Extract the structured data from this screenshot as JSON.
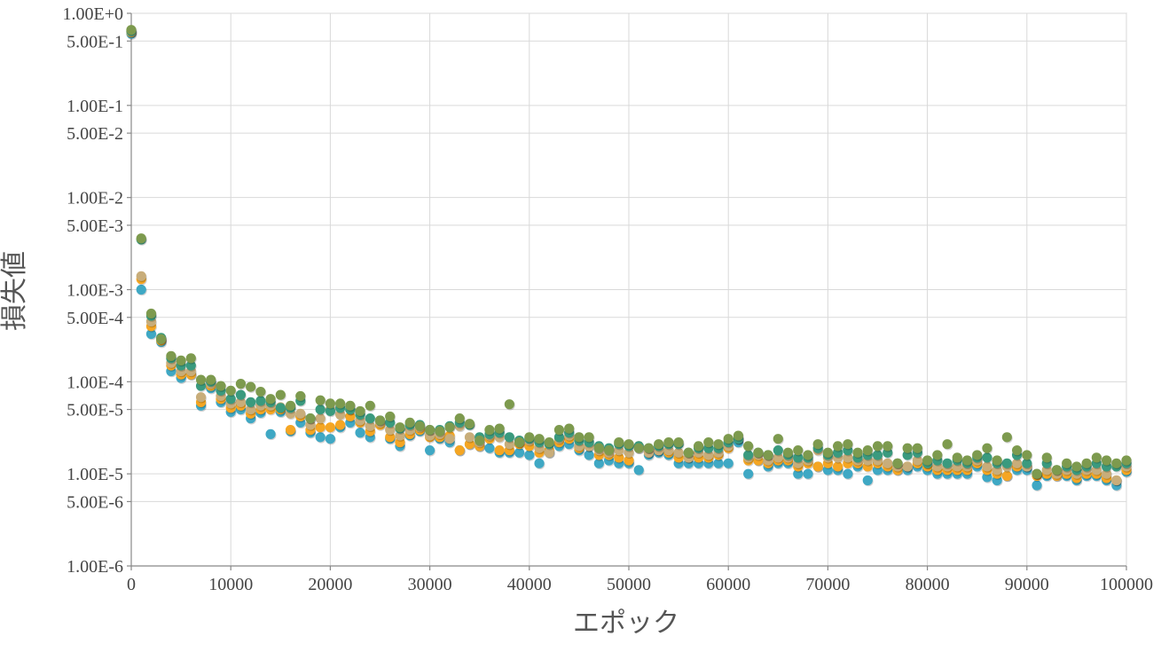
{
  "chart_data": {
    "type": "scatter",
    "xlabel": "エポック",
    "ylabel": "損失値",
    "xlim": [
      0,
      100000
    ],
    "ylim": [
      1e-06,
      1
    ],
    "yscale": "log",
    "grid": true,
    "x_ticks": [
      "0",
      "10000",
      "20000",
      "30000",
      "40000",
      "50000",
      "60000",
      "70000",
      "80000",
      "90000",
      "100000"
    ],
    "y_ticks": [
      {
        "label": "1.00E+0",
        "value": 1
      },
      {
        "label": "5.00E-1",
        "value": 0.5
      },
      {
        "label": "1.00E-1",
        "value": 0.1
      },
      {
        "label": "5.00E-2",
        "value": 0.05
      },
      {
        "label": "1.00E-2",
        "value": 0.01
      },
      {
        "label": "5.00E-3",
        "value": 0.005
      },
      {
        "label": "1.00E-3",
        "value": 0.001
      },
      {
        "label": "5.00E-4",
        "value": 0.0005
      },
      {
        "label": "1.00E-4",
        "value": 0.0001
      },
      {
        "label": "5.00E-5",
        "value": 5e-05
      },
      {
        "label": "1.00E-5",
        "value": 1e-05
      },
      {
        "label": "5.00E-6",
        "value": 5e-06
      },
      {
        "label": "1.00E-6",
        "value": 1e-06
      }
    ],
    "series": [
      {
        "color": "#3fa8c4",
        "x": [
          0,
          1000,
          2000,
          3000,
          4000,
          5000,
          6000,
          7000,
          8000,
          9000,
          10000,
          11000,
          12000,
          13000,
          14000,
          15000,
          16000,
          17000,
          18000,
          19000,
          20000,
          21000,
          22000,
          23000,
          24000,
          25000,
          26000,
          27000,
          28000,
          29000,
          30000,
          31000,
          32000,
          33000,
          34000,
          35000,
          36000,
          37000,
          38000,
          39000,
          40000,
          41000,
          42000,
          43000,
          44000,
          45000,
          46000,
          47000,
          48000,
          49000,
          50000,
          51000,
          52000,
          53000,
          54000,
          55000,
          56000,
          57000,
          58000,
          59000,
          60000,
          61000,
          62000,
          63000,
          64000,
          65000,
          66000,
          67000,
          68000,
          69000,
          70000,
          71000,
          72000,
          73000,
          74000,
          75000,
          76000,
          77000,
          78000,
          79000,
          80000,
          81000,
          82000,
          83000,
          84000,
          85000,
          86000,
          87000,
          88000,
          89000,
          90000,
          91000,
          92000,
          93000,
          94000,
          95000,
          96000,
          97000,
          98000,
          99000,
          100000
        ],
        "y": [
          0.6,
          0.001,
          0.00033,
          0.00027,
          0.00013,
          0.00011,
          0.00012,
          5.5e-05,
          8.5e-05,
          6e-05,
          4.7e-05,
          5e-05,
          4e-05,
          4.6e-05,
          2.7e-05,
          4.7e-05,
          2.9e-05,
          3.6e-05,
          2.8e-05,
          2.5e-05,
          2.4e-05,
          3.2e-05,
          3.6e-05,
          2.8e-05,
          2.5e-05,
          3.5e-05,
          2.4e-05,
          2e-05,
          2.6e-05,
          2.9e-05,
          1.8e-05,
          2.4e-05,
          2.2e-05,
          1.8e-05,
          2.1e-05,
          2e-05,
          1.9e-05,
          1.7e-05,
          1.7e-05,
          1.7e-05,
          1.6e-05,
          1.3e-05,
          1.7e-05,
          2e-05,
          2.1e-05,
          1.8e-05,
          1.6e-05,
          1.3e-05,
          1.4e-05,
          1.3e-05,
          1.3e-05,
          1.1e-05,
          1.6e-05,
          1.7e-05,
          1.6e-05,
          1.3e-05,
          1.3e-05,
          1.3e-05,
          1.3e-05,
          1.3e-05,
          1.3e-05,
          2.2e-05,
          1e-05,
          1.4e-05,
          1.2e-05,
          1.3e-05,
          1.3e-05,
          1e-05,
          1e-05,
          1.2e-05,
          1.1e-05,
          1.1e-05,
          1e-05,
          1.2e-05,
          8.5e-06,
          1.1e-05,
          1.1e-05,
          1.1e-05,
          1.1e-05,
          1.2e-05,
          1.1e-05,
          1e-05,
          1e-05,
          1e-05,
          1e-05,
          1.2e-05,
          9.2e-06,
          8.5e-06,
          9.5e-06,
          1.1e-05,
          1.1e-05,
          7.5e-06,
          9.5e-06,
          9.5e-06,
          9.5e-06,
          8.5e-06,
          9.5e-06,
          9.5e-06,
          8.5e-06,
          7.5e-06,
          1.05e-05
        ]
      },
      {
        "color": "#f5a623",
        "x": [
          0,
          1000,
          2000,
          3000,
          4000,
          5000,
          6000,
          7000,
          8000,
          9000,
          10000,
          11000,
          12000,
          13000,
          14000,
          15000,
          16000,
          17000,
          18000,
          19000,
          20000,
          21000,
          22000,
          23000,
          24000,
          25000,
          26000,
          27000,
          28000,
          29000,
          30000,
          31000,
          32000,
          33000,
          34000,
          35000,
          36000,
          37000,
          38000,
          39000,
          40000,
          41000,
          42000,
          43000,
          44000,
          45000,
          46000,
          47000,
          48000,
          49000,
          50000,
          51000,
          52000,
          53000,
          54000,
          55000,
          56000,
          57000,
          58000,
          59000,
          60000,
          61000,
          62000,
          63000,
          64000,
          65000,
          66000,
          67000,
          68000,
          69000,
          70000,
          71000,
          72000,
          73000,
          74000,
          75000,
          76000,
          77000,
          78000,
          79000,
          80000,
          81000,
          82000,
          83000,
          84000,
          85000,
          86000,
          87000,
          88000,
          89000,
          90000,
          91000,
          92000,
          93000,
          94000,
          95000,
          96000,
          97000,
          98000,
          99000,
          100000
        ],
        "y": [
          0.62,
          0.0013,
          0.0004,
          0.00028,
          0.00015,
          0.00012,
          0.00012,
          6e-05,
          9e-05,
          6.5e-05,
          5.2e-05,
          5.5e-05,
          4.5e-05,
          5e-05,
          5e-05,
          5e-05,
          3e-05,
          4.2e-05,
          3e-05,
          3.2e-05,
          3.2e-05,
          3.4e-05,
          4.2e-05,
          3.6e-05,
          2.9e-05,
          3.4e-05,
          2.5e-05,
          2.2e-05,
          2.7e-05,
          3e-05,
          2.5e-05,
          2.5e-05,
          2.6e-05,
          1.8e-05,
          2.1e-05,
          2e-05,
          2.4e-05,
          1.8e-05,
          1.8e-05,
          2.1e-05,
          2e-05,
          1.7e-05,
          1.8e-05,
          2.2e-05,
          2.4e-05,
          1.9e-05,
          2e-05,
          1.6e-05,
          1.6e-05,
          1.5e-05,
          1.4e-05,
          2e-05,
          1.7e-05,
          1.8e-05,
          1.7e-05,
          1.5e-05,
          1.5e-05,
          1.5e-05,
          1.5e-05,
          1.6e-05,
          1.9e-05,
          2.4e-05,
          1.4e-05,
          1.4e-05,
          1.3e-05,
          1.4e-05,
          1.4e-05,
          1.2e-05,
          1.3e-05,
          1.2e-05,
          1.3e-05,
          1.2e-05,
          1.3e-05,
          1.3e-05,
          1.2e-05,
          1.3e-05,
          1.2e-05,
          1.1e-05,
          1.2e-05,
          1.3e-05,
          1.2e-05,
          1.1e-05,
          1.1e-05,
          1.1e-05,
          1.1e-05,
          1.3e-05,
          1.1e-05,
          1e-05,
          9.5e-06,
          1.2e-05,
          1.2e-05,
          9.5e-06,
          1e-05,
          9.5e-06,
          1e-05,
          9e-06,
          1e-05,
          1e-05,
          9e-06,
          8.5e-06,
          1.1e-05
        ]
      },
      {
        "color": "#c8ad7a",
        "x": [
          0,
          1000,
          2000,
          3000,
          4000,
          5000,
          6000,
          7000,
          8000,
          9000,
          10000,
          11000,
          12000,
          13000,
          14000,
          15000,
          16000,
          17000,
          18000,
          19000,
          20000,
          21000,
          22000,
          23000,
          24000,
          25000,
          26000,
          27000,
          28000,
          29000,
          30000,
          31000,
          32000,
          33000,
          34000,
          35000,
          36000,
          37000,
          38000,
          39000,
          40000,
          41000,
          42000,
          43000,
          44000,
          45000,
          46000,
          47000,
          48000,
          49000,
          50000,
          51000,
          52000,
          53000,
          54000,
          55000,
          56000,
          57000,
          58000,
          59000,
          60000,
          61000,
          62000,
          63000,
          64000,
          65000,
          66000,
          67000,
          68000,
          69000,
          70000,
          71000,
          72000,
          73000,
          74000,
          75000,
          76000,
          77000,
          78000,
          79000,
          80000,
          81000,
          82000,
          83000,
          84000,
          85000,
          86000,
          87000,
          88000,
          89000,
          90000,
          91000,
          92000,
          93000,
          94000,
          95000,
          96000,
          97000,
          98000,
          99000,
          100000
        ],
        "y": [
          0.63,
          0.0014,
          0.00045,
          0.00029,
          0.00016,
          0.00013,
          0.00013,
          6.8e-05,
          9.5e-05,
          7e-05,
          5.8e-05,
          6e-05,
          5e-05,
          5.5e-05,
          5.5e-05,
          5.3e-05,
          4.5e-05,
          4.5e-05,
          3.4e-05,
          4e-05,
          5e-05,
          4.4e-05,
          5e-05,
          3.8e-05,
          3.3e-05,
          3.6e-05,
          3e-05,
          2.6e-05,
          3e-05,
          3.2e-05,
          2.6e-05,
          2.7e-05,
          2.4e-05,
          3.3e-05,
          2.5e-05,
          2.2e-05,
          2.6e-05,
          2.5e-05,
          2.1e-05,
          2.2e-05,
          2.3e-05,
          1.9e-05,
          1.7e-05,
          2.4e-05,
          2.6e-05,
          2e-05,
          2e-05,
          1.8e-05,
          1.7e-05,
          1.8e-05,
          1.7e-05,
          1.9e-05,
          1.7e-05,
          1.8e-05,
          1.8e-05,
          1.7e-05,
          1.5e-05,
          1.7e-05,
          1.6e-05,
          1.7e-05,
          2e-05,
          2.4e-05,
          1.5e-05,
          1.6e-05,
          1.4e-05,
          1.5e-05,
          1.5e-05,
          1.3e-05,
          1.4e-05,
          1.8e-05,
          1.5e-05,
          1.5e-05,
          1.5e-05,
          1.4e-05,
          1.4e-05,
          1.4e-05,
          1.3e-05,
          1.2e-05,
          1.2e-05,
          1.4e-05,
          1.3e-05,
          1.2e-05,
          1.2e-05,
          1.2e-05,
          1.2e-05,
          1.4e-05,
          1.2e-05,
          1.1e-05,
          1.2e-05,
          1.3e-05,
          1.2e-05,
          1e-05,
          1.1e-05,
          1e-05,
          1.1e-05,
          1e-05,
          1.1e-05,
          1.1e-05,
          1e-05,
          8.5e-06,
          1.2e-05
        ]
      },
      {
        "color": "#3a9a7e",
        "x": [
          0,
          1000,
          2000,
          3000,
          4000,
          5000,
          6000,
          7000,
          8000,
          9000,
          10000,
          11000,
          12000,
          13000,
          14000,
          15000,
          16000,
          17000,
          18000,
          19000,
          20000,
          21000,
          22000,
          23000,
          24000,
          25000,
          26000,
          27000,
          28000,
          29000,
          30000,
          31000,
          32000,
          33000,
          34000,
          35000,
          36000,
          37000,
          38000,
          39000,
          40000,
          41000,
          42000,
          43000,
          44000,
          45000,
          46000,
          47000,
          48000,
          49000,
          50000,
          51000,
          52000,
          53000,
          54000,
          55000,
          56000,
          57000,
          58000,
          59000,
          60000,
          61000,
          62000,
          63000,
          64000,
          65000,
          66000,
          67000,
          68000,
          69000,
          70000,
          71000,
          72000,
          73000,
          74000,
          75000,
          76000,
          77000,
          78000,
          79000,
          80000,
          81000,
          82000,
          83000,
          84000,
          85000,
          86000,
          87000,
          88000,
          89000,
          90000,
          91000,
          92000,
          93000,
          94000,
          95000,
          96000,
          97000,
          98000,
          99000,
          100000
        ],
        "y": [
          0.64,
          0.0035,
          0.00052,
          0.0003,
          0.00018,
          0.00015,
          0.00015,
          9e-05,
          0.0001,
          8e-05,
          6.5e-05,
          7.2e-05,
          6e-05,
          6.2e-05,
          6e-05,
          5.2e-05,
          5.2e-05,
          6.2e-05,
          4e-05,
          5e-05,
          4.8e-05,
          5.2e-05,
          5e-05,
          4.4e-05,
          4e-05,
          3.8e-05,
          3.6e-05,
          3.1e-05,
          3.4e-05,
          3.4e-05,
          3e-05,
          3e-05,
          3.3e-05,
          3.6e-05,
          3.4e-05,
          2.5e-05,
          2.7e-05,
          2.8e-05,
          2.5e-05,
          2.3e-05,
          2.4e-05,
          2.2e-05,
          2.1e-05,
          2.5e-05,
          2.8e-05,
          2.3e-05,
          2.2e-05,
          2e-05,
          1.9e-05,
          2.1e-05,
          2e-05,
          2e-05,
          1.9e-05,
          2e-05,
          2.1e-05,
          2.1e-05,
          1.7e-05,
          1.9e-05,
          1.9e-05,
          1.9e-05,
          2.2e-05,
          2.4e-05,
          1.6e-05,
          1.7e-05,
          1.6e-05,
          1.8e-05,
          1.6e-05,
          1.5e-05,
          1.5e-05,
          1.9e-05,
          1.6e-05,
          1.7e-05,
          1.8e-05,
          1.5e-05,
          1.6e-05,
          1.6e-05,
          1.7e-05,
          1.3e-05,
          1.6e-05,
          1.7e-05,
          1.3e-05,
          1.4e-05,
          1.3e-05,
          1.4e-05,
          1.3e-05,
          1.5e-05,
          1.5e-05,
          1.3e-05,
          1.3e-05,
          1.6e-05,
          1.3e-05,
          1e-05,
          1.3e-05,
          1.1e-05,
          1.2e-05,
          1.1e-05,
          1.2e-05,
          1.3e-05,
          1.2e-05,
          1.2e-05,
          1.3e-05
        ]
      },
      {
        "color": "#7d9a4e",
        "x": [
          0,
          1000,
          2000,
          3000,
          4000,
          5000,
          6000,
          7000,
          8000,
          9000,
          10000,
          11000,
          12000,
          13000,
          14000,
          15000,
          16000,
          17000,
          18000,
          19000,
          20000,
          21000,
          22000,
          23000,
          24000,
          25000,
          26000,
          27000,
          28000,
          29000,
          30000,
          31000,
          32000,
          33000,
          34000,
          35000,
          36000,
          37000,
          38000,
          39000,
          40000,
          41000,
          42000,
          43000,
          44000,
          45000,
          46000,
          47000,
          48000,
          49000,
          50000,
          51000,
          52000,
          53000,
          54000,
          55000,
          56000,
          57000,
          58000,
          59000,
          60000,
          61000,
          62000,
          63000,
          64000,
          65000,
          66000,
          67000,
          68000,
          69000,
          70000,
          71000,
          72000,
          73000,
          74000,
          75000,
          76000,
          77000,
          78000,
          79000,
          80000,
          81000,
          82000,
          83000,
          84000,
          85000,
          86000,
          87000,
          88000,
          89000,
          90000,
          91000,
          92000,
          93000,
          94000,
          95000,
          96000,
          97000,
          98000,
          99000,
          100000
        ],
        "y": [
          0.66,
          0.0036,
          0.00055,
          0.00029,
          0.00019,
          0.00017,
          0.00018,
          0.000105,
          0.000105,
          9e-05,
          8e-05,
          9.5e-05,
          8.8e-05,
          7.8e-05,
          6.5e-05,
          7.2e-05,
          5.5e-05,
          7e-05,
          4e-05,
          6.3e-05,
          5.8e-05,
          5.8e-05,
          5.5e-05,
          4.8e-05,
          5.5e-05,
          3.8e-05,
          4.2e-05,
          3.2e-05,
          3.6e-05,
          3.3e-05,
          3e-05,
          2.9e-05,
          3.2e-05,
          4e-05,
          3.5e-05,
          2.3e-05,
          3e-05,
          3.1e-05,
          5.7e-05,
          2.2e-05,
          2.5e-05,
          2.4e-05,
          2.2e-05,
          3e-05,
          3.1e-05,
          2.5e-05,
          2.5e-05,
          1.9e-05,
          1.8e-05,
          2.2e-05,
          2.1e-05,
          1.9e-05,
          1.9e-05,
          2.1e-05,
          2.2e-05,
          2.2e-05,
          1.7e-05,
          2e-05,
          2.2e-05,
          2.1e-05,
          2.4e-05,
          2.6e-05,
          2e-05,
          1.7e-05,
          1.6e-05,
          2.4e-05,
          1.7e-05,
          1.8e-05,
          1.6e-05,
          2.1e-05,
          1.7e-05,
          2e-05,
          2.1e-05,
          1.7e-05,
          1.8e-05,
          2e-05,
          2e-05,
          1.3e-05,
          1.9e-05,
          1.9e-05,
          1.4e-05,
          1.6e-05,
          2.1e-05,
          1.5e-05,
          1.4e-05,
          1.6e-05,
          1.9e-05,
          1.4e-05,
          2.5e-05,
          1.8e-05,
          1.6e-05,
          1e-05,
          1.5e-05,
          1.1e-05,
          1.3e-05,
          1.2e-05,
          1.3e-05,
          1.5e-05,
          1.4e-05,
          1.3e-05,
          1.4e-05
        ]
      }
    ]
  }
}
